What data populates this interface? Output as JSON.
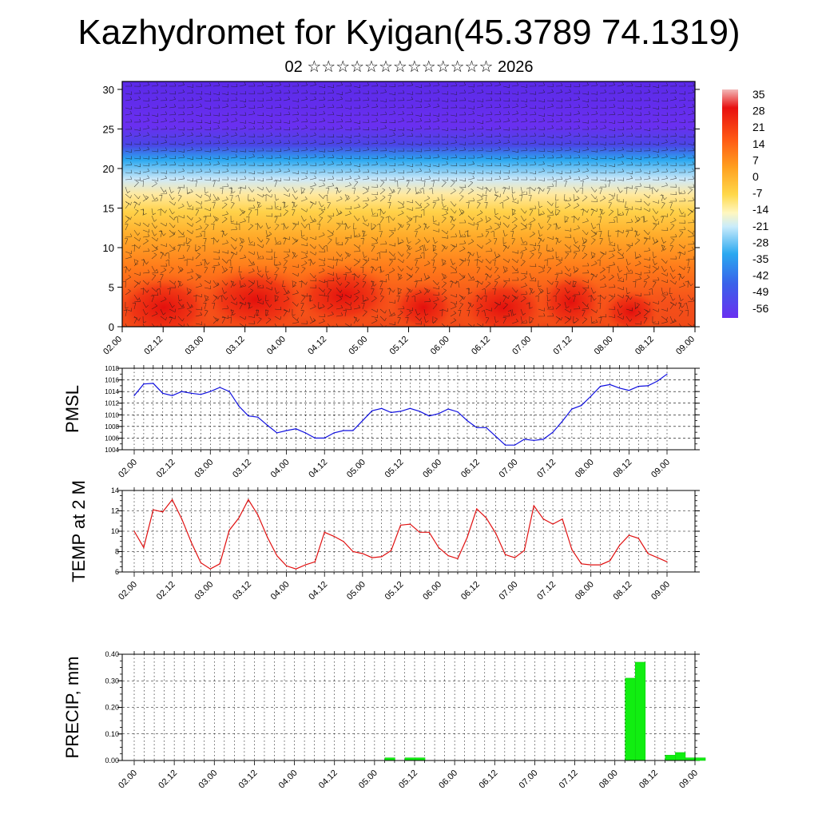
{
  "header": {
    "title": "Kazhydromet for Kyigan(45.3789 74.1319)",
    "subtitle": "02 ☆☆☆☆☆☆☆☆☆☆☆☆☆ 2026"
  },
  "chart_data": [
    {
      "id": "cross_section",
      "type": "heatmap",
      "title": "",
      "xlabel": "",
      "ylabel": "",
      "x_ticks": [
        "02.00",
        "02.12",
        "03.00",
        "03.12",
        "04.00",
        "04.12",
        "05.00",
        "05.12",
        "06.00",
        "06.12",
        "07.00",
        "07.12",
        "08.00",
        "08.12",
        "09.00"
      ],
      "y_ticks": [
        0,
        5,
        10,
        15,
        20,
        25,
        30
      ],
      "ylim": [
        0,
        31
      ],
      "colorbar_labels": [
        "35",
        "28",
        "21",
        "14",
        "7",
        "0",
        "-7",
        "-14",
        "-21",
        "-28",
        "-35",
        "-42",
        "-49",
        "-56"
      ],
      "colors": {
        "hot": "#e81010",
        "warm": "#ff7a1a",
        "mild": "#ffe066",
        "cold": "#2aa8f0",
        "frigid": "#5a2ae8"
      },
      "overlay": "wind barbs"
    },
    {
      "id": "pmsl",
      "type": "line",
      "ylabel": "PMSL",
      "x_ticks": [
        "02.00",
        "02.12",
        "03.00",
        "03.12",
        "04.00",
        "04.12",
        "05.00",
        "05.12",
        "06.00",
        "06.12",
        "07.00",
        "07.12",
        "08.00",
        "08.12",
        "09.00"
      ],
      "y_ticks": [
        "1004",
        "1006",
        "1008",
        "1010",
        "1012",
        "1014",
        "1016",
        "1018"
      ],
      "ylim": [
        1004,
        1018
      ],
      "x_step_hours": 3,
      "color": "#1010e0",
      "values": [
        1013.3,
        1015.3,
        1015.4,
        1013.7,
        1013.3,
        1014.0,
        1013.7,
        1013.5,
        1014.0,
        1014.7,
        1014.0,
        1011.5,
        1009.8,
        1009.6,
        1008.2,
        1006.9,
        1007.3,
        1007.6,
        1006.9,
        1006.0,
        1006.0,
        1006.9,
        1007.3,
        1007.3,
        1009.0,
        1010.7,
        1011.1,
        1010.4,
        1010.6,
        1011.1,
        1010.6,
        1009.8,
        1010.2,
        1011.0,
        1010.5,
        1009.0,
        1007.8,
        1007.8,
        1006.3,
        1004.8,
        1004.8,
        1005.8,
        1005.6,
        1005.8,
        1007.0,
        1008.9,
        1011.0,
        1011.6,
        1013.2,
        1014.9,
        1015.2,
        1014.6,
        1014.2,
        1014.9,
        1015.0,
        1015.8,
        1017.0
      ]
    },
    {
      "id": "temp2m",
      "type": "line",
      "ylabel": "TEMP at 2 M",
      "x_ticks": [
        "02.00",
        "02.12",
        "03.00",
        "03.12",
        "04.00",
        "04.12",
        "05.00",
        "05.12",
        "06.00",
        "06.12",
        "07.00",
        "07.12",
        "08.00",
        "08.12",
        "09.00"
      ],
      "y_ticks": [
        "6",
        "8",
        "10",
        "12",
        "14"
      ],
      "ylim": [
        6,
        14
      ],
      "x_step_hours": 3,
      "color": "#e01010",
      "values": [
        10.0,
        8.4,
        12.1,
        11.9,
        13.1,
        11.2,
        8.9,
        6.9,
        6.3,
        6.8,
        10.1,
        11.3,
        13.1,
        11.6,
        9.4,
        7.6,
        6.6,
        6.3,
        6.7,
        7.0,
        9.9,
        9.5,
        9.0,
        8.0,
        7.8,
        7.4,
        7.5,
        8.1,
        10.6,
        10.7,
        9.9,
        9.9,
        8.4,
        7.6,
        7.3,
        9.4,
        12.2,
        11.3,
        9.8,
        7.7,
        7.4,
        8.1,
        12.5,
        11.2,
        10.7,
        11.2,
        8.2,
        6.8,
        6.7,
        6.7,
        7.1,
        8.6,
        9.6,
        9.3,
        7.8,
        7.4,
        7.0
      ]
    },
    {
      "id": "precip",
      "type": "bar",
      "ylabel": "PRECIP, mm",
      "x_ticks": [
        "02.00",
        "02.12",
        "03.00",
        "03.12",
        "04.00",
        "04.12",
        "05.00",
        "05.12",
        "06.00",
        "06.12",
        "07.00",
        "07.12",
        "08.00",
        "08.12",
        "09.00"
      ],
      "y_ticks": [
        "0.00",
        "0.10",
        "0.20",
        "0.30",
        "0.40"
      ],
      "ylim": [
        0,
        0.4
      ],
      "x_step_hours": 3,
      "color": "#11ee11",
      "values": [
        0,
        0,
        0,
        0,
        0,
        0,
        0,
        0,
        0,
        0,
        0,
        0,
        0,
        0,
        0,
        0,
        0,
        0,
        0,
        0,
        0,
        0,
        0,
        0,
        0,
        0.01,
        0,
        0.01,
        0.01,
        0,
        0,
        0,
        0,
        0,
        0,
        0,
        0,
        0,
        0,
        0,
        0,
        0,
        0,
        0,
        0,
        0,
        0,
        0,
        0,
        0.31,
        0.37,
        0,
        0,
        0.02,
        0.03,
        0.01,
        0.01
      ]
    }
  ]
}
